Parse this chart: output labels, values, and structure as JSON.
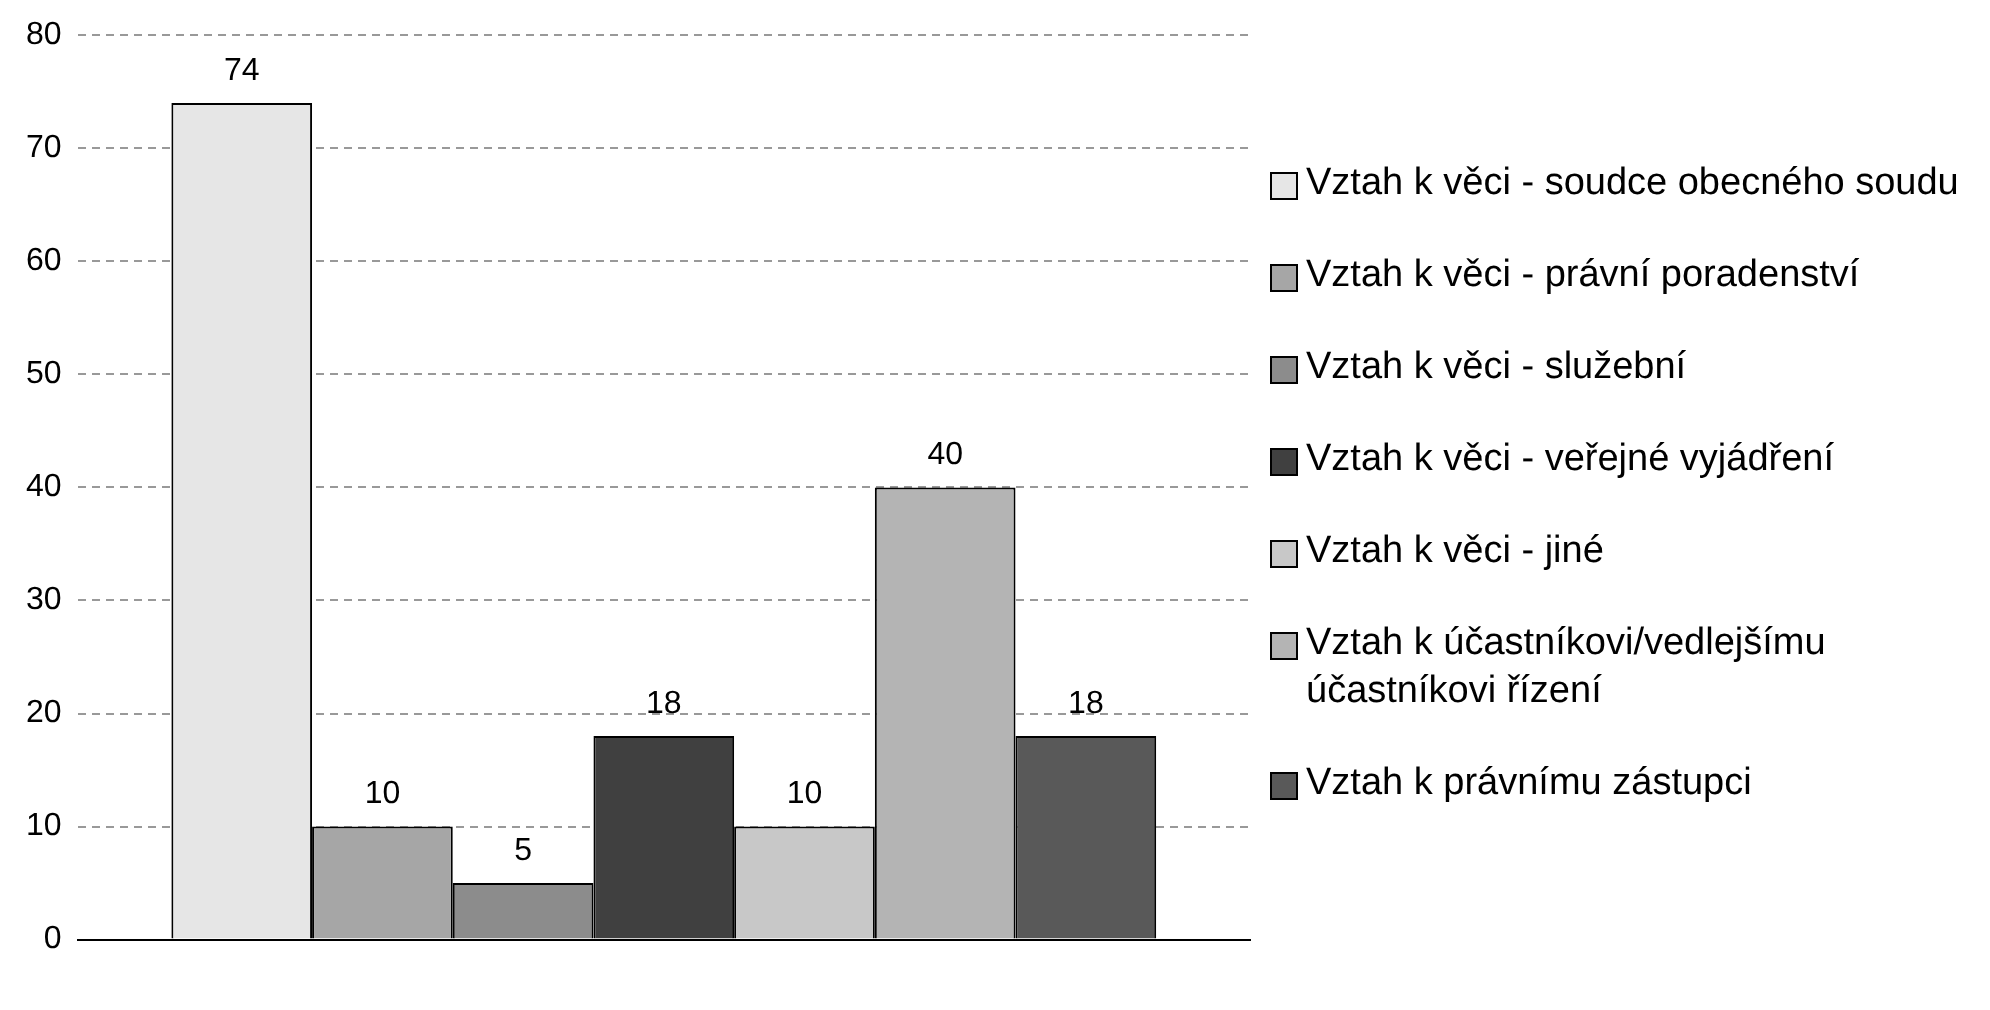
{
  "chart_data": {
    "type": "bar",
    "categories": [
      null
    ],
    "series": [
      {
        "name": "Vztah k věci - soudce obecného soudu",
        "color": "#e6e6e6",
        "values": [
          74
        ]
      },
      {
        "name": "Vztah k věci - právní poradenství",
        "color": "#a6a6a6",
        "values": [
          10
        ]
      },
      {
        "name": "Vztah k věci - služební",
        "color": "#8c8c8c",
        "values": [
          5
        ]
      },
      {
        "name": "Vztah k věci - veřejné vyjádření",
        "color": "#404040",
        "values": [
          18
        ]
      },
      {
        "name": "Vztah k věci - jiné",
        "color": "#c8c8c8",
        "values": [
          10
        ]
      },
      {
        "name": "Vztah k účastníkovi/vedlejšímu účastníkovi řízení",
        "color": "#b4b4b4",
        "values": [
          40
        ]
      },
      {
        "name": "Vztah k právnímu zástupci",
        "color": "#595959",
        "values": [
          18
        ]
      }
    ],
    "ylim": [
      0,
      80
    ],
    "yticks": [
      0,
      10,
      20,
      30,
      40,
      50,
      60,
      70,
      80
    ],
    "grid": "y",
    "legend": "right",
    "data_labels": true
  }
}
